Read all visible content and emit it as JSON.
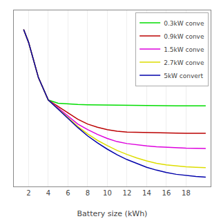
{
  "chart_data": {
    "type": "line",
    "x_label": "Battery size (kWh)",
    "xlim": [
      0.5,
      20.5
    ],
    "xticks": [
      2,
      4,
      6,
      8,
      10,
      12,
      14,
      16,
      18
    ],
    "ylim": [
      0,
      1.1
    ],
    "yticks": [],
    "tick_labels": "x",
    "grid": true,
    "legend": "upper right",
    "series": [
      {
        "name": "0.3kW conve",
        "color": "#00dd00",
        "x": [
          1.5,
          2,
          3,
          4,
          5,
          6,
          7,
          8,
          9,
          10,
          11,
          12,
          13,
          14,
          15,
          16,
          17,
          18,
          19,
          20
        ],
        "values": [
          0.98,
          0.9,
          0.68,
          0.54,
          0.52,
          0.515,
          0.512,
          0.51,
          0.509,
          0.508,
          0.507,
          0.506,
          0.506,
          0.505,
          0.505,
          0.504,
          0.504,
          0.504,
          0.504,
          0.504
        ]
      },
      {
        "name": "0.9kW conve",
        "color": "#bb0000",
        "x": [
          1.5,
          2,
          3,
          4,
          5,
          6,
          7,
          8,
          9,
          10,
          11,
          12,
          13,
          14,
          15,
          16,
          17,
          18,
          19,
          20
        ],
        "values": [
          0.98,
          0.9,
          0.68,
          0.54,
          0.5,
          0.46,
          0.42,
          0.39,
          0.37,
          0.355,
          0.345,
          0.34,
          0.338,
          0.336,
          0.335,
          0.334,
          0.333,
          0.332,
          0.332,
          0.332
        ]
      },
      {
        "name": "1.5kW conve",
        "color": "#dd00dd",
        "x": [
          1.5,
          2,
          3,
          4,
          5,
          6,
          7,
          8,
          9,
          10,
          11,
          12,
          13,
          14,
          15,
          16,
          17,
          18,
          19,
          20
        ],
        "values": [
          0.98,
          0.9,
          0.68,
          0.54,
          0.49,
          0.44,
          0.39,
          0.355,
          0.325,
          0.3,
          0.28,
          0.268,
          0.26,
          0.253,
          0.248,
          0.244,
          0.241,
          0.239,
          0.238,
          0.237
        ]
      },
      {
        "name": "2.7kW conve",
        "color": "#dddd00",
        "x": [
          1.5,
          2,
          3,
          4,
          5,
          6,
          7,
          8,
          9,
          10,
          11,
          12,
          13,
          14,
          15,
          16,
          17,
          18,
          19,
          20
        ],
        "values": [
          0.98,
          0.9,
          0.68,
          0.54,
          0.485,
          0.43,
          0.375,
          0.328,
          0.288,
          0.255,
          0.225,
          0.2,
          0.178,
          0.16,
          0.145,
          0.135,
          0.128,
          0.123,
          0.12,
          0.118
        ]
      },
      {
        "name": "5kW convert",
        "color": "#0000aa",
        "x": [
          1.5,
          2,
          3,
          4,
          5,
          6,
          7,
          8,
          9,
          10,
          11,
          12,
          13,
          14,
          15,
          16,
          17,
          18,
          19,
          20
        ],
        "values": [
          0.98,
          0.9,
          0.68,
          0.54,
          0.483,
          0.425,
          0.368,
          0.316,
          0.272,
          0.233,
          0.198,
          0.168,
          0.143,
          0.12,
          0.102,
          0.087,
          0.076,
          0.068,
          0.063,
          0.058
        ]
      }
    ]
  }
}
